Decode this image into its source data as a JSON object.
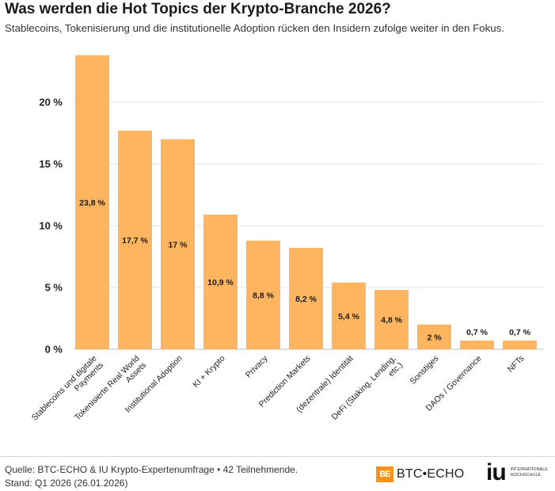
{
  "header": {
    "title": "Was werden die Hot Topics der Krypto-Branche 2026?",
    "subtitle": "Stablecoins, Tokenisierung und die institutionelle Adoption rücken den Insidern zufolge weiter in den Fokus."
  },
  "chart_data": {
    "type": "bar",
    "title": "Was werden die Hot Topics der Krypto-Branche 2026?",
    "subtitle": "Stablecoins, Tokenisierung und die institutionelle Adoption rücken den Insidern zufolge weiter in den Fokus.",
    "xlabel": "",
    "ylabel": "",
    "categories": [
      "Stablecoins und digitale Payments",
      "Tokenisierte Real World Assets",
      "Institutional Adoption",
      "KI + Krypto",
      "Privacy",
      "Prediction Markets",
      "(dezentrale) Identität",
      "DeFi (Staking, Lending, etc.)",
      "Sonstiges",
      "DAOs / Governance",
      "NFTs"
    ],
    "category_lines": [
      [
        "Stablecoins und digitale",
        "Payments"
      ],
      [
        "Tokenisierte Real World",
        "Assets"
      ],
      [
        "Institutional Adoption"
      ],
      [
        "KI + Krypto"
      ],
      [
        "Privacy"
      ],
      [
        "Prediction Markets"
      ],
      [
        "(dezentrale) Identität"
      ],
      [
        "DeFi (Staking, Lending,",
        "etc.)"
      ],
      [
        "Sonstiges"
      ],
      [
        "DAOs / Governance"
      ],
      [
        "NFTs"
      ]
    ],
    "values": [
      23.8,
      17.7,
      17,
      10.9,
      8.8,
      8.2,
      5.4,
      4.8,
      2,
      0.7,
      0.7
    ],
    "data_labels": [
      "23,8 %",
      "17,7 %",
      "17 %",
      "10,9 %",
      "8,8 %",
      "8,2 %",
      "5,4 %",
      "4,8 %",
      "2 %",
      "0,7 %",
      "0,7 %"
    ],
    "yticks": [
      0,
      5,
      10,
      15,
      20
    ],
    "ytick_labels": [
      "0 %",
      "5 %",
      "10 %",
      "15 %",
      "20 %"
    ],
    "ylim": [
      0,
      24
    ],
    "grid": true,
    "bar_color": "#ffb55f"
  },
  "footer": {
    "source_line1": "Quelle: BTC-ECHO & IU Krypto-Expertenumfrage • 42 Teilnehmende.",
    "source_line2": "Stand: Q1 2026 (26.01.2026)",
    "btc_mark": "BE",
    "btc_logo_text": "BTC•ECHO",
    "iu_mark": "iu",
    "iu_line1": "INTERNATIONALE",
    "iu_line2": "HOCHSCHULE"
  }
}
